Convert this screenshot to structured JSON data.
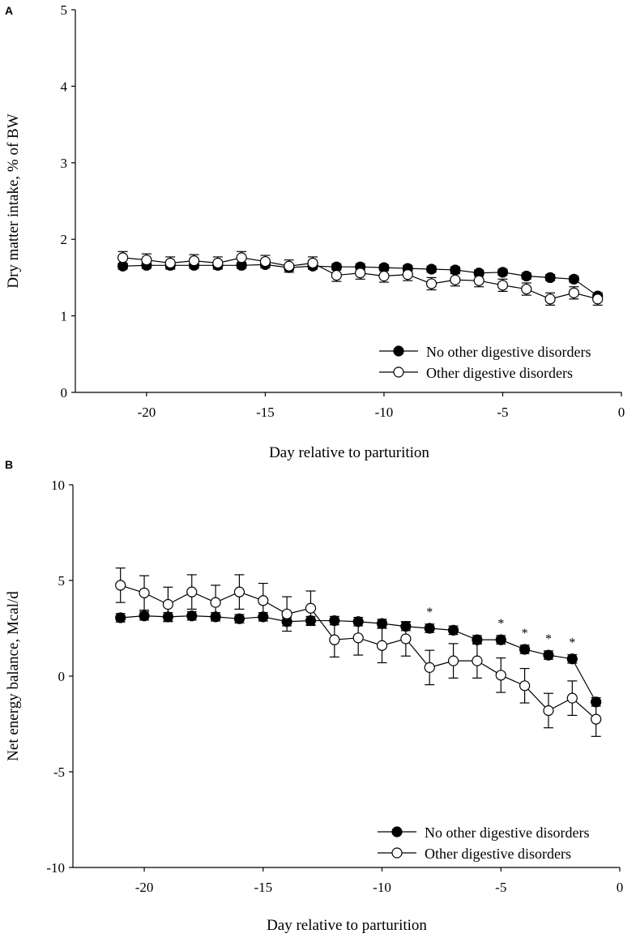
{
  "chart_data": [
    {
      "type": "line",
      "panel": "A",
      "title": "",
      "xlabel": "Day relative to parturition",
      "ylabel": "Dry matter intake, % of BW",
      "xlim": [
        -23,
        0
      ],
      "ylim": [
        0,
        5
      ],
      "xticks": [
        -20,
        -15,
        -10,
        -5,
        0
      ],
      "yticks": [
        0,
        1,
        2,
        3,
        4,
        5
      ],
      "xtick_labels": [
        "-20",
        "-15",
        "-10",
        "-5",
        "0"
      ],
      "ytick_labels": [
        "0",
        "1",
        "2",
        "3",
        "4",
        "5"
      ],
      "legend_position": "bottom-right",
      "x": [
        -21,
        -20,
        -19,
        -18,
        -17,
        -16,
        -15,
        -14,
        -13,
        -12,
        -11,
        -10,
        -9,
        -8,
        -7,
        -6,
        -5,
        -4,
        -3,
        -2,
        -1
      ],
      "series": [
        {
          "name": "No other digestive disorders",
          "marker": "filled-circle",
          "values": [
            1.65,
            1.66,
            1.66,
            1.66,
            1.66,
            1.66,
            1.67,
            1.63,
            1.65,
            1.64,
            1.64,
            1.63,
            1.62,
            1.61,
            1.6,
            1.56,
            1.57,
            1.52,
            1.5,
            1.48,
            1.26
          ],
          "errors": [
            0.04,
            0.04,
            0.04,
            0.04,
            0.04,
            0.04,
            0.04,
            0.04,
            0.04,
            0.04,
            0.04,
            0.04,
            0.04,
            0.04,
            0.04,
            0.04,
            0.04,
            0.04,
            0.04,
            0.04,
            0.04
          ]
        },
        {
          "name": "Other digestive disorders",
          "marker": "open-circle",
          "values": [
            1.76,
            1.73,
            1.69,
            1.72,
            1.69,
            1.76,
            1.71,
            1.65,
            1.69,
            1.53,
            1.56,
            1.52,
            1.54,
            1.42,
            1.47,
            1.46,
            1.4,
            1.35,
            1.22,
            1.3,
            1.22
          ],
          "errors": [
            0.08,
            0.08,
            0.08,
            0.08,
            0.08,
            0.08,
            0.08,
            0.08,
            0.08,
            0.08,
            0.08,
            0.08,
            0.08,
            0.08,
            0.08,
            0.08,
            0.08,
            0.08,
            0.08,
            0.08,
            0.08
          ]
        }
      ]
    },
    {
      "type": "line",
      "panel": "B",
      "title": "",
      "xlabel": "Day relative to parturition",
      "ylabel": "Net energy balance, Mcal/d",
      "xlim": [
        -23,
        0
      ],
      "ylim": [
        -10,
        10
      ],
      "xticks": [
        -20,
        -15,
        -10,
        -5,
        0
      ],
      "yticks": [
        -10,
        -5,
        0,
        5,
        10
      ],
      "xtick_labels": [
        "-20",
        "-15",
        "-10",
        "-5",
        "0"
      ],
      "ytick_labels": [
        "-10",
        "-5",
        "0",
        "5",
        "10"
      ],
      "legend_position": "bottom-right",
      "significance_marker": "*",
      "significant_days": [
        -8,
        -5,
        -4,
        -3,
        -2
      ],
      "x": [
        -21,
        -20,
        -19,
        -18,
        -17,
        -16,
        -15,
        -14,
        -13,
        -12,
        -11,
        -10,
        -9,
        -8,
        -7,
        -6,
        -5,
        -4,
        -3,
        -2,
        -1
      ],
      "series": [
        {
          "name": "No other digestive disorders",
          "marker": "filled-circle",
          "values": [
            3.05,
            3.15,
            3.1,
            3.15,
            3.1,
            3.0,
            3.1,
            2.85,
            2.9,
            2.9,
            2.85,
            2.75,
            2.6,
            2.5,
            2.4,
            1.9,
            1.9,
            1.4,
            1.1,
            0.9,
            -1.35
          ],
          "errors": [
            0.22,
            0.22,
            0.22,
            0.22,
            0.22,
            0.22,
            0.22,
            0.22,
            0.22,
            0.22,
            0.22,
            0.22,
            0.22,
            0.22,
            0.22,
            0.22,
            0.22,
            0.22,
            0.22,
            0.22,
            0.22
          ]
        },
        {
          "name": "Other digestive disorders",
          "marker": "open-circle",
          "values": [
            4.75,
            4.35,
            3.75,
            4.4,
            3.85,
            4.4,
            3.95,
            3.25,
            3.55,
            1.9,
            2.0,
            1.6,
            1.95,
            0.45,
            0.8,
            0.8,
            0.05,
            -0.5,
            -1.8,
            -1.15,
            -2.25
          ],
          "errors": [
            0.9,
            0.9,
            0.9,
            0.9,
            0.9,
            0.9,
            0.9,
            0.9,
            0.9,
            0.9,
            0.9,
            0.9,
            0.9,
            0.9,
            0.9,
            0.9,
            0.9,
            0.9,
            0.9,
            0.9,
            0.9
          ]
        }
      ]
    }
  ]
}
